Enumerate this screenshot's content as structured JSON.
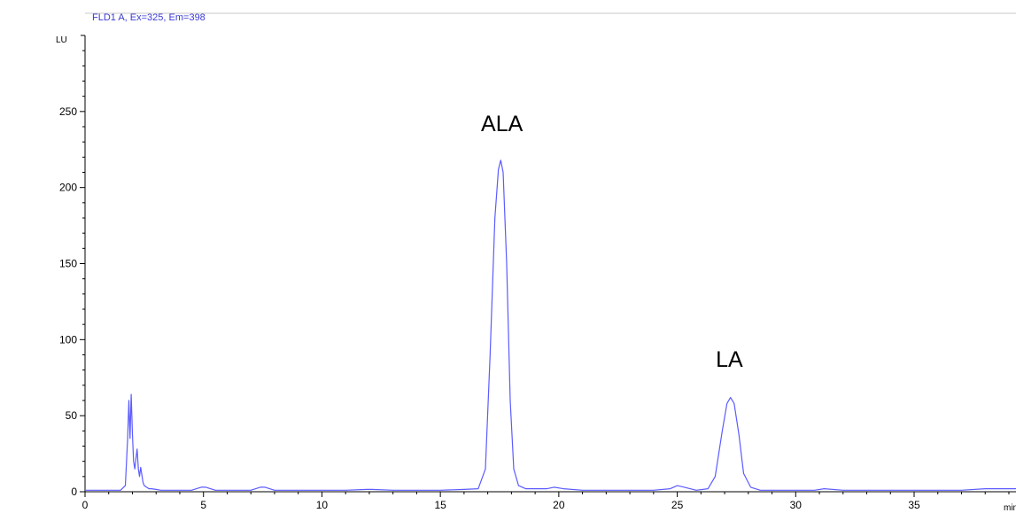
{
  "chart_data": {
    "type": "line",
    "title": "FLD1 A, Ex=325, Em=398",
    "ylabel": "LU",
    "xlabel": "min",
    "xlim": [
      0,
      39.3
    ],
    "ylim": [
      0,
      300
    ],
    "x_ticks": [
      "0",
      "5",
      "10",
      "15",
      "20",
      "25",
      "30",
      "35"
    ],
    "y_ticks": [
      "0",
      "50",
      "100",
      "150",
      "200",
      "250"
    ],
    "annotations": [
      {
        "text": "ALA",
        "x": 17.6,
        "y": 237
      },
      {
        "text": "LA",
        "x": 27.2,
        "y": 82
      }
    ],
    "series": [
      {
        "color": "#5b5bff",
        "x": [
          0,
          1.5,
          1.7,
          1.8,
          1.85,
          1.9,
          1.95,
          2.0,
          2.05,
          2.1,
          2.15,
          2.2,
          2.25,
          2.3,
          2.35,
          2.4,
          2.45,
          2.5,
          2.6,
          2.7,
          2.8,
          3.0,
          3.2,
          3.5,
          4.0,
          4.5,
          4.9,
          5.1,
          5.5,
          6.0,
          6.5,
          7.0,
          7.4,
          7.6,
          8.0,
          9.0,
          10.0,
          11.0,
          11.9,
          12.1,
          13.0,
          14.0,
          15.0,
          16.0,
          16.6,
          16.9,
          17.1,
          17.3,
          17.45,
          17.55,
          17.65,
          17.8,
          17.95,
          18.1,
          18.3,
          18.6,
          19.0,
          19.5,
          19.8,
          20.2,
          21.0,
          22.0,
          23.0,
          24.0,
          24.7,
          25.0,
          25.3,
          25.8,
          26.3,
          26.6,
          26.9,
          27.1,
          27.25,
          27.4,
          27.6,
          27.8,
          28.1,
          28.5,
          29.0,
          30.0,
          30.8,
          31.2,
          32.0,
          33.0,
          34.0,
          35.0,
          36.0,
          37.0,
          38.0,
          38.5,
          39.0,
          39.3
        ],
        "y": [
          1,
          1,
          4,
          35,
          60,
          35,
          64,
          38,
          20,
          15,
          22,
          28,
          15,
          10,
          16,
          11,
          6,
          4,
          3,
          2,
          2,
          1.5,
          1,
          1,
          1,
          1,
          3,
          3,
          1,
          1,
          1,
          1,
          3,
          3,
          1,
          1,
          1,
          1,
          1.5,
          1.5,
          1,
          1,
          1,
          1.5,
          2,
          15,
          90,
          180,
          212,
          218,
          210,
          150,
          60,
          15,
          4,
          2,
          2,
          2,
          3,
          2,
          1,
          1,
          1,
          1,
          2,
          4,
          3,
          1,
          2,
          10,
          40,
          58,
          62,
          58,
          38,
          12,
          3,
          1,
          1,
          1,
          1,
          2,
          1,
          1,
          1,
          1,
          1,
          1,
          2,
          2,
          2,
          2
        ]
      }
    ],
    "grid": false,
    "legend": "none"
  }
}
